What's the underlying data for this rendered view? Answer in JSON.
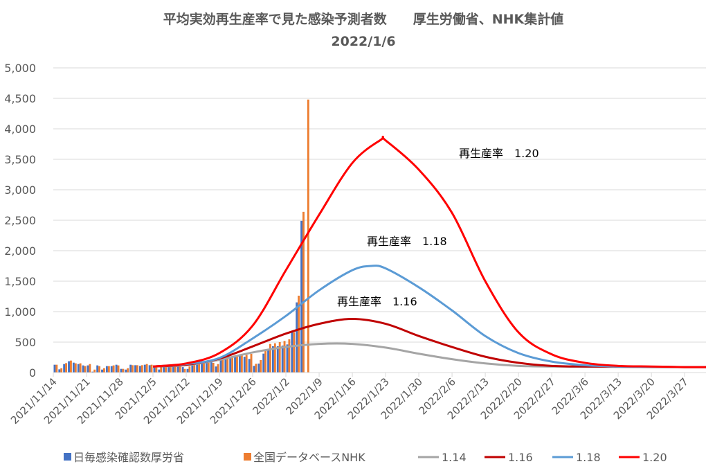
{
  "chart_data": {
    "type": "bar+line",
    "title": "平均実効再生産率で見た感染予測者数　　厚生労働省、NHK集計値",
    "subtitle": "2022/1/6",
    "ylim": [
      0,
      5000
    ],
    "y_ticks": [
      "0",
      "500",
      "1,000",
      "1,500",
      "2,000",
      "2,500",
      "3,000",
      "3,500",
      "4,000",
      "4,500",
      "5,000"
    ],
    "y_tick_values": [
      0,
      500,
      1000,
      1500,
      2000,
      2500,
      3000,
      3500,
      4000,
      4500,
      5000
    ],
    "x_start": "2021/11/14",
    "x_days_total": 137.5,
    "x_tick_labels": [
      "2021/11/14",
      "2021/11/21",
      "2021/11/28",
      "2021/12/5",
      "2021/12/12",
      "2021/12/19",
      "2021/12/26",
      "2022/1/2",
      "2022/1/9",
      "2022/1/16",
      "2022/1/23",
      "2022/1/30",
      "2022/2/6",
      "2022/2/13",
      "2022/2/20",
      "2022/2/27",
      "2022/3/6",
      "2022/3/13",
      "2022/3/20",
      "2022/3/27"
    ],
    "grid": true,
    "legend_position": "bottom",
    "bar_series": [
      {
        "name": "日毎感染確認数厚労省",
        "color": "#4472C4",
        "values": [
          129,
          53,
          140,
          186,
          163,
          140,
          118,
          118,
          15,
          118,
          49,
          106,
          106,
          129,
          61,
          49,
          129,
          121,
          110,
          129,
          121,
          95,
          50,
          110,
          120,
          110,
          110,
          90,
          60,
          130,
          150,
          160,
          170,
          200,
          100,
          210,
          220,
          240,
          270,
          280,
          260,
          224,
          110,
          148,
          311,
          387,
          432,
          432,
          443,
          462,
          660,
          1152,
          2490,
          null
        ]
      },
      {
        "name": "全国データベースNHK",
        "color": "#ED7D31",
        "values": [
          129,
          72,
          155,
          197,
          152,
          152,
          106,
          140,
          49,
          106,
          72,
          106,
          118,
          118,
          61,
          72,
          121,
          121,
          121,
          140,
          129,
          95,
          100,
          110,
          110,
          130,
          120,
          60,
          100,
          140,
          150,
          160,
          170,
          160,
          140,
          230,
          240,
          270,
          280,
          300,
          290,
          307,
          144,
          205,
          375,
          470,
          481,
          500,
          519,
          546,
          660,
          1262,
          2638,
          4480
        ]
      }
    ],
    "line_series": [
      {
        "name": "1.14",
        "color": "#A5A5A5",
        "days": [
          21,
          28,
          35,
          42,
          49,
          56,
          63,
          70,
          77,
          84,
          91,
          98,
          105,
          112,
          119,
          126,
          133,
          137.5
        ],
        "values": [
          100,
          120,
          210,
          330,
          420,
          470,
          470,
          410,
          310,
          220,
          150,
          110,
          100,
          95,
          92,
          90,
          90,
          90
        ]
      },
      {
        "name": "1.16",
        "color": "#C00000",
        "days": [
          21,
          28,
          35,
          42,
          49,
          56,
          63,
          70,
          77,
          84,
          91,
          98,
          105,
          112,
          119,
          126,
          133,
          137.5
        ],
        "values": [
          100,
          130,
          230,
          430,
          640,
          800,
          880,
          800,
          600,
          420,
          260,
          160,
          110,
          100,
          100,
          95,
          90,
          90
        ]
      },
      {
        "name": "1.18",
        "color": "#5B9BD5",
        "days": [
          21,
          28,
          35,
          42,
          49,
          56,
          63,
          67,
          70,
          77,
          84,
          91,
          98,
          105,
          112,
          119,
          126,
          133,
          137.5
        ],
        "values": [
          100,
          140,
          240,
          560,
          930,
          1350,
          1680,
          1750,
          1710,
          1400,
          1020,
          600,
          320,
          180,
          120,
          100,
          95,
          90,
          90
        ]
      },
      {
        "name": "1.20",
        "color": "#FF0000",
        "days": [
          21,
          28,
          35,
          42,
          49,
          56,
          63,
          69,
          70,
          77,
          84,
          91,
          98,
          105,
          112,
          119,
          126,
          133,
          137.5
        ],
        "values": [
          100,
          150,
          320,
          770,
          1680,
          2590,
          3440,
          3820,
          3810,
          3330,
          2620,
          1500,
          660,
          300,
          160,
          110,
          100,
          90,
          90
        ]
      }
    ],
    "annotations": [
      {
        "text": "再生産率　1.20",
        "series": "1.20"
      },
      {
        "text": "再生産率　1.18",
        "series": "1.18"
      },
      {
        "text": "再生産率　1.16",
        "series": "1.16"
      }
    ]
  }
}
